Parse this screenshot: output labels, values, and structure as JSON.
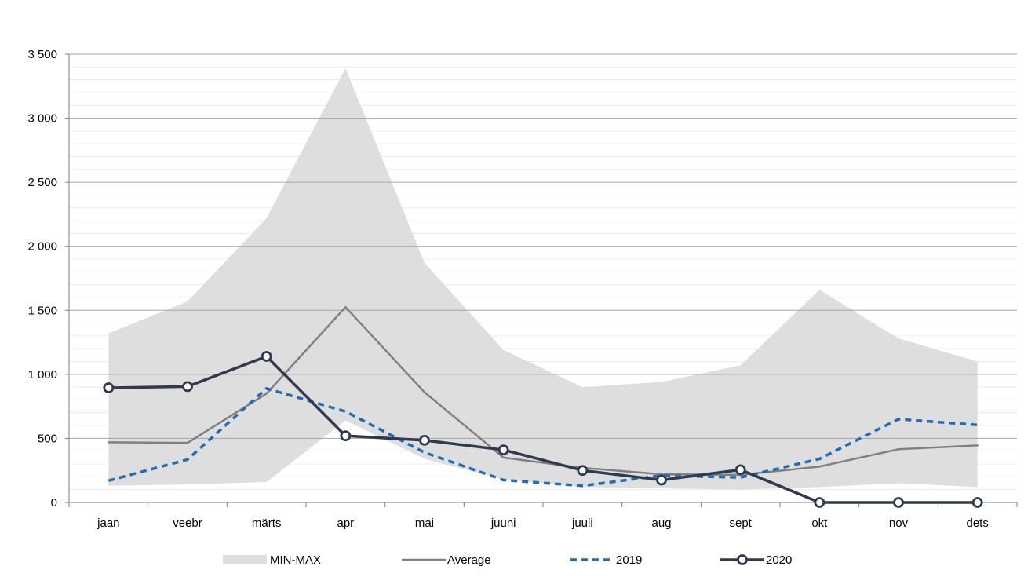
{
  "chart_data": {
    "type": "line",
    "categories": [
      "jaan",
      "veebr",
      "märts",
      "apr",
      "mai",
      "juuni",
      "juuli",
      "aug",
      "sept",
      "okt",
      "nov",
      "dets"
    ],
    "ylim": [
      0,
      3500
    ],
    "yticks": [
      0,
      500,
      1000,
      1500,
      2000,
      2500,
      3000,
      3500
    ],
    "ytick_labels": [
      "0",
      "500",
      "1 000",
      "1 500",
      "2 000",
      "2 500",
      "3 000",
      "3 500"
    ],
    "grid": true,
    "legend_position": "bottom",
    "range_band": {
      "name": "MIN-MAX",
      "color": "#dedede",
      "min": [
        130,
        140,
        160,
        640,
        340,
        180,
        120,
        110,
        100,
        120,
        150,
        120
      ],
      "max": [
        1320,
        1570,
        2220,
        3390,
        1870,
        1190,
        900,
        940,
        1070,
        1660,
        1280,
        1100
      ]
    },
    "series": [
      {
        "name": "Average",
        "style": "solid",
        "color": "#808080",
        "values": [
          470,
          465,
          850,
          1525,
          860,
          350,
          270,
          220,
          215,
          280,
          415,
          445
        ]
      },
      {
        "name": "2019",
        "style": "dashed",
        "color": "#1f6db5",
        "values": [
          170,
          335,
          890,
          710,
          390,
          175,
          130,
          210,
          195,
          340,
          650,
          605
        ]
      },
      {
        "name": "2020",
        "style": "solid-markers",
        "color": "#2e3a4e",
        "values": [
          895,
          905,
          1140,
          520,
          485,
          410,
          250,
          175,
          255,
          0,
          0,
          0
        ]
      }
    ]
  }
}
